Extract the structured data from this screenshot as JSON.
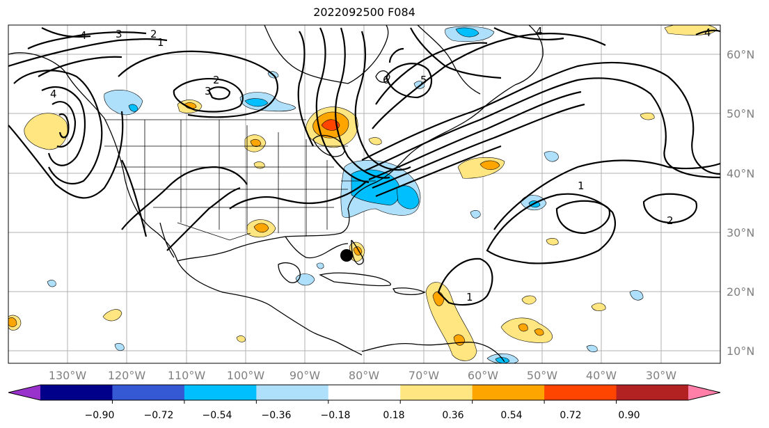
{
  "title": "2022092500 F084",
  "lat_labels": [
    "60°N",
    "50°N",
    "40°N",
    "30°N",
    "20°N",
    "10°N"
  ],
  "lon_labels": [
    "130°W",
    "120°W",
    "110°W",
    "100°W",
    "90°W",
    "80°W",
    "70°W",
    "60°W",
    "50°W",
    "40°W",
    "30°W"
  ],
  "colorbar": {
    "ticks": [
      "−0.90",
      "−0.72",
      "−0.54",
      "−0.36",
      "−0.18",
      "0.18",
      "0.36",
      "0.54",
      "0.72",
      "0.90"
    ],
    "colors": [
      "#9932cc",
      "#00008b",
      "#3558d4",
      "#00bfff",
      "#aee0fb",
      "#ffffff",
      "#ffe680",
      "#ffa500",
      "#ff4500",
      "#b22222",
      "#ff7fa8"
    ]
  },
  "contour_labels": [
    "4",
    "3",
    "2",
    "1",
    "4",
    "3",
    "2",
    "6",
    "5",
    "4",
    "1",
    "2",
    "1",
    "4"
  ],
  "marker": "storm-center-dot"
}
